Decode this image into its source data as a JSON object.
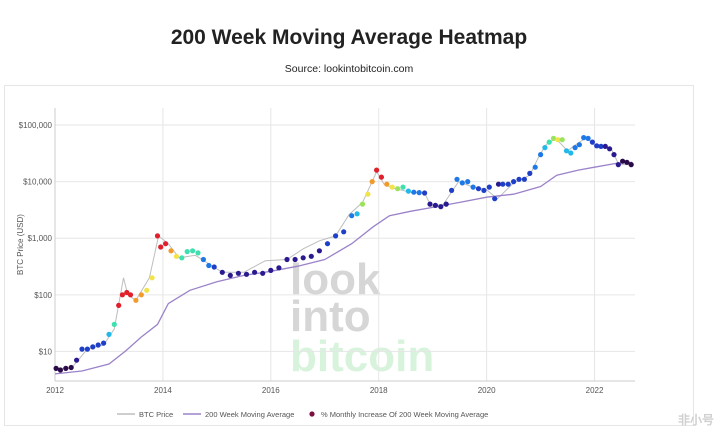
{
  "title": "200 Week Moving Average Heatmap",
  "source": "Source: lookintobitcoin.com",
  "watermark": [
    "look",
    "into",
    "bitcoin"
  ],
  "corner_watermark": "非小号",
  "colors": {
    "price_line": "#bdbdbd",
    "ma_line": "#9b82c9",
    "grid": "#e6e6e6",
    "text": "#555555",
    "watermark_gray": "#d6d6d6",
    "watermark_green": "#d8f3dc",
    "heat_scale": [
      "#2b0a4a",
      "#2a1a8f",
      "#1f3fc8",
      "#1e78e6",
      "#22b8e8",
      "#3fe0b0",
      "#9be35a",
      "#f2e34a",
      "#f29a2a",
      "#e0202a"
    ]
  },
  "chart_data": {
    "type": "line",
    "title": "200 Week Moving Average Heatmap",
    "subtitle": "Source: lookintobitcoin.com",
    "xlabel": "",
    "ylabel": "BTC Price (USD)",
    "y_scale": "log",
    "ylim": [
      3,
      200000
    ],
    "xlim": [
      2012.0,
      2022.75
    ],
    "x_ticks": [
      2012,
      2014,
      2016,
      2018,
      2020,
      2022
    ],
    "y_ticks": [
      10,
      100,
      1000,
      10000,
      100000
    ],
    "y_tick_labels": [
      "$10",
      "$100",
      "$1,000",
      "$10,000",
      "$100,000"
    ],
    "legend": {
      "position": "bottom",
      "entries": [
        "BTC Price",
        "200 Week Moving Average",
        "% Monthly Increase Of 200 Week Moving Average"
      ]
    },
    "series": [
      {
        "name": "BTC Price",
        "x": [
          2012.0,
          2012.3,
          2012.6,
          2012.9,
          2013.1,
          2013.27,
          2013.35,
          2013.5,
          2013.75,
          2013.92,
          2014.1,
          2014.3,
          2014.6,
          2014.9,
          2015.1,
          2015.5,
          2015.9,
          2016.3,
          2016.6,
          2016.9,
          2017.2,
          2017.45,
          2017.7,
          2017.88,
          2017.96,
          2018.1,
          2018.3,
          2018.6,
          2018.85,
          2018.97,
          2019.2,
          2019.48,
          2019.75,
          2020.0,
          2020.2,
          2020.5,
          2020.8,
          2020.97,
          2021.1,
          2021.28,
          2021.5,
          2021.65,
          2021.85,
          2022.05,
          2022.3,
          2022.45,
          2022.65
        ],
        "y": [
          5,
          5,
          11,
          13,
          25,
          200,
          100,
          80,
          200,
          1100,
          800,
          450,
          500,
          330,
          250,
          250,
          400,
          420,
          650,
          900,
          1100,
          2600,
          4300,
          10000,
          15000,
          9000,
          7500,
          6500,
          6300,
          3700,
          4000,
          10000,
          8000,
          7200,
          5000,
          9500,
          13000,
          28000,
          45000,
          58000,
          35000,
          45000,
          60000,
          40000,
          40000,
          20000,
          20000
        ]
      },
      {
        "name": "200 Week Moving Average",
        "x": [
          2012.0,
          2012.5,
          2013.0,
          2013.3,
          2013.6,
          2013.9,
          2014.1,
          2014.5,
          2015.0,
          2015.5,
          2016.0,
          2016.5,
          2017.0,
          2017.5,
          2017.9,
          2018.2,
          2018.6,
          2019.0,
          2019.5,
          2020.0,
          2020.5,
          2021.0,
          2021.3,
          2021.7,
          2022.0,
          2022.4,
          2022.7
        ],
        "y": [
          4,
          4.5,
          6,
          10,
          18,
          30,
          70,
          120,
          170,
          220,
          260,
          320,
          420,
          800,
          1600,
          2500,
          3000,
          3500,
          4300,
          5300,
          6000,
          8200,
          13000,
          16000,
          18000,
          21000,
          22000
        ]
      },
      {
        "name": "% Monthly Increase Of 200 Week Moving Average",
        "x": [
          2012.02,
          2012.1,
          2012.2,
          2012.3,
          2012.4,
          2012.5,
          2012.6,
          2012.7,
          2012.8,
          2012.9,
          2013.0,
          2013.1,
          2013.18,
          2013.25,
          2013.33,
          2013.4,
          2013.5,
          2013.6,
          2013.7,
          2013.8,
          2013.9,
          2013.96,
          2014.05,
          2014.15,
          2014.25,
          2014.35,
          2014.45,
          2014.55,
          2014.65,
          2014.75,
          2014.85,
          2014.95,
          2015.1,
          2015.25,
          2015.4,
          2015.55,
          2015.7,
          2015.85,
          2016.0,
          2016.15,
          2016.3,
          2016.45,
          2016.6,
          2016.75,
          2016.9,
          2017.05,
          2017.2,
          2017.35,
          2017.5,
          2017.6,
          2017.7,
          2017.8,
          2017.88,
          2017.96,
          2018.05,
          2018.15,
          2018.25,
          2018.35,
          2018.45,
          2018.55,
          2018.65,
          2018.75,
          2018.85,
          2018.95,
          2019.05,
          2019.15,
          2019.25,
          2019.35,
          2019.45,
          2019.55,
          2019.65,
          2019.75,
          2019.85,
          2019.95,
          2020.05,
          2020.15,
          2020.22,
          2020.3,
          2020.4,
          2020.5,
          2020.6,
          2020.7,
          2020.8,
          2020.9,
          2021.0,
          2021.08,
          2021.16,
          2021.24,
          2021.32,
          2021.4,
          2021.48,
          2021.56,
          2021.64,
          2021.72,
          2021.8,
          2021.88,
          2021.96,
          2022.04,
          2022.12,
          2022.2,
          2022.28,
          2022.36,
          2022.44,
          2022.52,
          2022.6,
          2022.68
        ],
        "y": [
          5,
          4.7,
          5,
          5.2,
          7,
          11,
          11,
          12,
          13,
          14,
          20,
          30,
          65,
          100,
          110,
          100,
          80,
          100,
          120,
          200,
          1100,
          700,
          800,
          600,
          480,
          450,
          580,
          600,
          550,
          420,
          330,
          310,
          250,
          220,
          240,
          230,
          250,
          240,
          270,
          300,
          420,
          420,
          450,
          480,
          600,
          800,
          1100,
          1300,
          2500,
          2700,
          4000,
          6000,
          10000,
          16000,
          12000,
          9000,
          8000,
          7500,
          8000,
          6800,
          6500,
          6400,
          6300,
          4000,
          3800,
          3600,
          4000,
          7000,
          11000,
          9500,
          10000,
          8000,
          7500,
          7000,
          8000,
          5000,
          9000,
          9000,
          9000,
          10000,
          11000,
          11000,
          14000,
          18000,
          30000,
          40000,
          50000,
          58000,
          55000,
          55000,
          35000,
          32000,
          40000,
          45000,
          60000,
          58000,
          50000,
          43000,
          42000,
          42000,
          38000,
          30000,
          20000,
          23000,
          22000,
          20000
        ],
        "monthly_increase_level": [
          0,
          0,
          0,
          0,
          1,
          2,
          2,
          2,
          2,
          2,
          4,
          5,
          9,
          9,
          9,
          9,
          8,
          8,
          7,
          7,
          9,
          9,
          9,
          8,
          7,
          5,
          5,
          5,
          5,
          3,
          3,
          2,
          1,
          1,
          1,
          1,
          1,
          1,
          1,
          1,
          1,
          1,
          1,
          1,
          1,
          2,
          2,
          2,
          3,
          4,
          6,
          7,
          8,
          9,
          9,
          8,
          7,
          6,
          5,
          4,
          3,
          3,
          2,
          1,
          1,
          1,
          1,
          2,
          3,
          3,
          3,
          3,
          2,
          2,
          2,
          2,
          1,
          2,
          2,
          2,
          2,
          2,
          2,
          3,
          3,
          4,
          5,
          6,
          7,
          6,
          4,
          4,
          3,
          3,
          3,
          3,
          2,
          2,
          2,
          1,
          1,
          1,
          1,
          0,
          0,
          0
        ]
      }
    ]
  }
}
